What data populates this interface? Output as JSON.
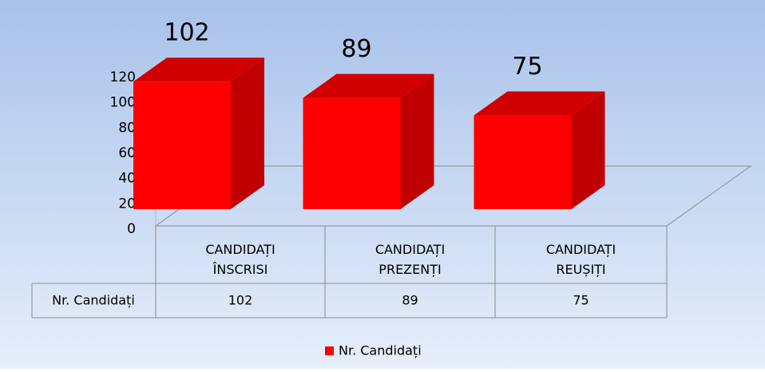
{
  "chart_data": {
    "type": "bar3d",
    "categories": [
      "CANDIDAȚI ÎNSCRISI",
      "CANDIDAȚI PREZENȚI",
      "CANDIDAȚI REUȘIȚI"
    ],
    "series": [
      {
        "name": "Nr. Candidați",
        "color": "#ff0000",
        "values": [
          102,
          89,
          75
        ]
      }
    ],
    "ylim": [
      0,
      120
    ],
    "yticks": [
      0,
      20,
      40,
      60,
      80,
      100,
      120
    ],
    "data_table": true,
    "legend": "bottom"
  }
}
